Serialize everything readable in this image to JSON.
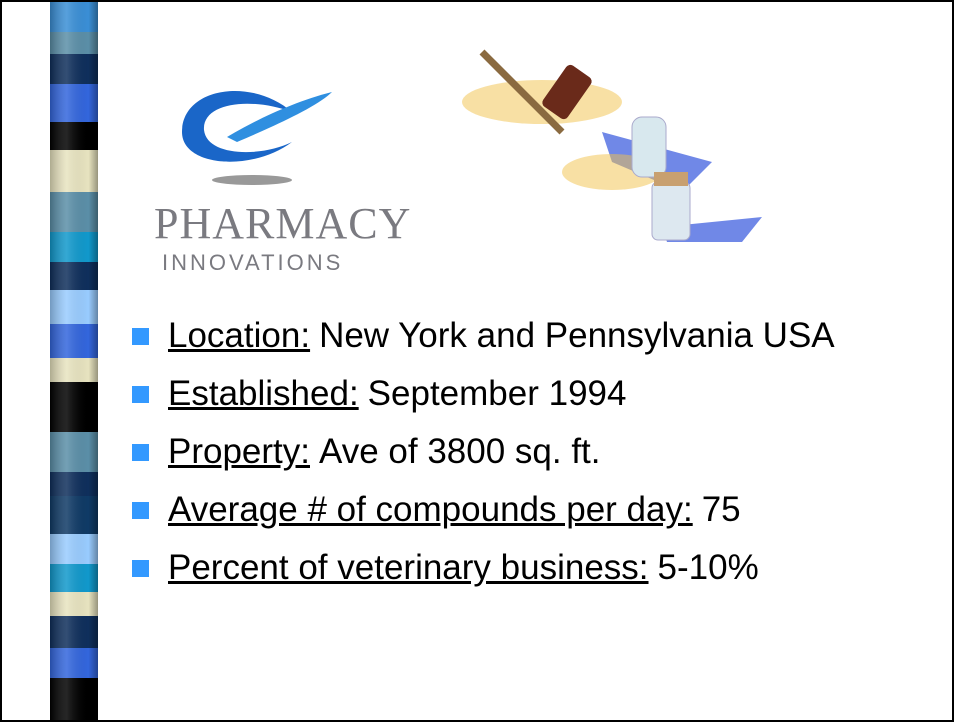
{
  "logo": {
    "name": "PHARMACY",
    "tagline": "INNOVATIONS"
  },
  "bullets": [
    {
      "label": "Location:",
      "text": "New York and Pennsylvania USA"
    },
    {
      "label": "Established:",
      "text": "September 1994"
    },
    {
      "label": "Property:",
      "text": "Ave of 3800 sq. ft."
    },
    {
      "label": "Average # of compounds per day:",
      "text": "75"
    },
    {
      "label": "Percent of veterinary business:",
      "text": "5-10%"
    }
  ]
}
